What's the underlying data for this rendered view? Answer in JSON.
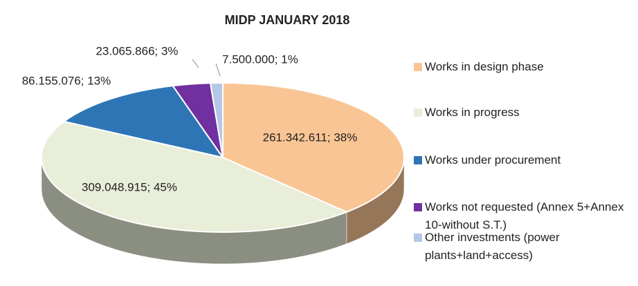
{
  "chart_data": {
    "type": "pie3d",
    "title": "MIDP JANUARY 2018",
    "categories": [
      "Works in design phase",
      "Works in progress",
      "Works under procurement",
      "Works not requested (Annex 5+Annex 10-without S.T.)",
      "Other investments (power plants+land+access)"
    ],
    "values": [
      261342611,
      309048915,
      86155076,
      23065866,
      7500000
    ],
    "value_labels": [
      "261.342.611; 38%",
      "309.048.915; 45%",
      "86.155.076; 13%",
      "23.065.866; 3%",
      "7.500.000; 1%"
    ],
    "colors": [
      "#fac595",
      "#e8eed8",
      "#2e75b6",
      "#7030a0",
      "#b4c7e7"
    ],
    "legend": "right"
  }
}
